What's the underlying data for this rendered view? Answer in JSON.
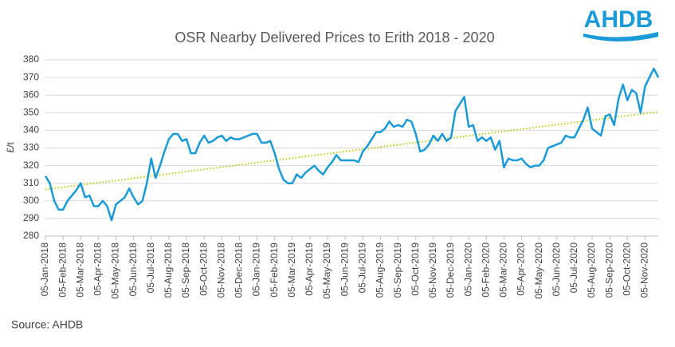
{
  "chart_data": {
    "type": "line",
    "title": "OSR Nearby Delivered Prices to Erith 2018 - 2020",
    "y_label": "£/t",
    "source": "Source: AHDB",
    "logo": "AHDB",
    "categories": [
      "05-Jan-2018",
      null,
      null,
      null,
      "05-Feb-2018",
      null,
      null,
      null,
      "05-Mar-2018",
      null,
      null,
      null,
      "05-Apr-2018",
      null,
      null,
      null,
      "05-May-2018",
      null,
      null,
      null,
      "05-Jun-2018",
      null,
      null,
      null,
      "05-Jul-2018",
      null,
      null,
      null,
      "05-Aug-2018",
      null,
      null,
      null,
      "05-Sep-2018",
      null,
      null,
      null,
      "05-Oct-2018",
      null,
      null,
      null,
      "05-Nov-2018",
      null,
      null,
      null,
      "05-Dec-2018",
      null,
      null,
      null,
      "05-Jan-2019",
      null,
      null,
      null,
      "05-Feb-2019",
      null,
      null,
      null,
      "05-Mar-2019",
      null,
      null,
      null,
      "05-Apr-2019",
      null,
      null,
      null,
      "05-May-2019",
      null,
      null,
      null,
      "05-Jun-2019",
      null,
      null,
      null,
      "05-Jul-2019",
      null,
      null,
      null,
      "05-Aug-2019",
      null,
      null,
      null,
      "05-Sep-2019",
      null,
      null,
      null,
      "05-Oct-2019",
      null,
      null,
      null,
      "05-Nov-2019",
      null,
      null,
      null,
      "05-Dec-2019",
      null,
      null,
      null,
      "05-Jan-2020",
      null,
      null,
      null,
      "05-Feb-2020",
      null,
      null,
      null,
      "05-Mar-2020",
      null,
      null,
      null,
      "05-Apr-2020",
      null,
      null,
      null,
      "05-May-2020",
      null,
      null,
      null,
      "05-Jun-2020",
      null,
      null,
      null,
      "05-Jul-2020",
      null,
      null,
      null,
      "05-Aug-2020",
      null,
      null,
      null,
      "05-Sep-2020",
      null,
      null,
      null,
      "05-Oct-2020",
      null,
      null,
      null,
      "05-Nov-2020",
      null,
      null,
      null
    ],
    "series": [
      {
        "color": "#1a9ad6",
        "values": [
          314,
          310,
          300,
          295,
          295,
          300,
          303,
          306,
          310,
          302,
          303,
          297,
          297,
          300,
          297,
          289,
          298,
          300,
          302,
          307,
          302,
          298,
          300,
          310,
          324,
          313,
          320,
          328,
          335,
          338,
          338,
          334,
          335,
          327,
          327,
          333,
          337,
          333,
          334,
          336,
          337,
          334,
          336,
          335,
          335,
          336,
          337,
          338,
          338,
          333,
          333,
          334,
          327,
          318,
          312,
          310,
          310,
          315,
          313,
          316,
          318,
          320,
          317,
          315,
          319,
          322,
          326,
          323,
          323,
          323,
          323,
          322,
          328,
          331,
          335,
          339,
          339,
          341,
          345,
          342,
          343,
          342,
          346,
          345,
          338,
          328,
          329,
          332,
          337,
          334,
          338,
          334,
          336,
          351,
          355,
          359,
          342,
          343,
          334,
          336,
          334,
          336,
          329,
          334,
          319,
          324,
          323,
          323,
          324,
          321,
          319,
          320,
          320,
          323,
          330,
          331,
          332,
          333,
          337,
          336,
          336,
          341,
          346,
          353,
          341,
          339,
          337,
          348,
          349,
          343,
          358,
          366,
          357,
          363,
          361,
          350,
          365,
          370,
          375,
          370
        ]
      }
    ],
    "trend": {
      "color": "#b5c800",
      "values": [
        306.5,
        350.5
      ]
    },
    "ylim": [
      280,
      380
    ],
    "yticks": [
      280,
      290,
      300,
      310,
      320,
      330,
      340,
      350,
      360,
      370,
      380
    ],
    "grid": true
  }
}
